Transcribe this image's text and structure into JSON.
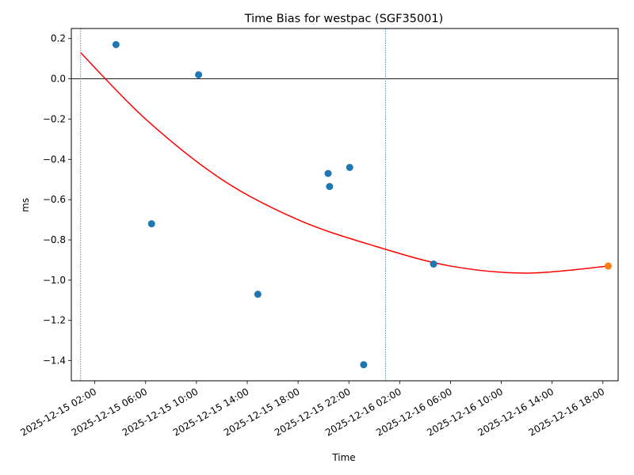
{
  "chart_data": {
    "type": "scatter",
    "title": "Time Bias for westpac (SGF35001)",
    "xlabel": "Time",
    "ylabel": "ms",
    "xlim": [
      "2025-12-15T00:09:00",
      "2025-12-16T19:12:00"
    ],
    "ylim": [
      -1.5,
      0.25
    ],
    "x_ticks": [
      {
        "t": "2025-12-15T02:00:00",
        "label": "2025-12-15 02:00"
      },
      {
        "t": "2025-12-15T06:00:00",
        "label": "2025-12-15 06:00"
      },
      {
        "t": "2025-12-15T10:00:00",
        "label": "2025-12-15 10:00"
      },
      {
        "t": "2025-12-15T14:00:00",
        "label": "2025-12-15 14:00"
      },
      {
        "t": "2025-12-15T18:00:00",
        "label": "2025-12-15 18:00"
      },
      {
        "t": "2025-12-15T22:00:00",
        "label": "2025-12-15 22:00"
      },
      {
        "t": "2025-12-16T02:00:00",
        "label": "2025-12-16 02:00"
      },
      {
        "t": "2025-12-16T06:00:00",
        "label": "2025-12-16 06:00"
      },
      {
        "t": "2025-12-16T10:00:00",
        "label": "2025-12-16 10:00"
      },
      {
        "t": "2025-12-16T14:00:00",
        "label": "2025-12-16 14:00"
      },
      {
        "t": "2025-12-16T18:00:00",
        "label": "2025-12-16 18:00"
      }
    ],
    "y_ticks": [
      {
        "v": 0.2,
        "label": "0.2"
      },
      {
        "v": 0.0,
        "label": "0.0"
      },
      {
        "v": -0.2,
        "label": "−0.2"
      },
      {
        "v": -0.4,
        "label": "−0.4"
      },
      {
        "v": -0.6,
        "label": "−0.6"
      },
      {
        "v": -0.8,
        "label": "−0.8"
      },
      {
        "v": -1.0,
        "label": "−1.0"
      },
      {
        "v": -1.2,
        "label": "−1.2"
      },
      {
        "v": -1.4,
        "label": "−1.4"
      }
    ],
    "series": [
      {
        "color": "#1f77b4",
        "points": [
          {
            "x": "2025-12-15T03:40:00",
            "y": 0.17
          },
          {
            "x": "2025-12-15T06:28:00",
            "y": -0.72
          },
          {
            "x": "2025-12-15T10:10:00",
            "y": 0.02
          },
          {
            "x": "2025-12-15T14:50:00",
            "y": -1.07
          },
          {
            "x": "2025-12-15T20:22:00",
            "y": -0.47
          },
          {
            "x": "2025-12-15T20:29:00",
            "y": -0.535
          },
          {
            "x": "2025-12-15T22:04:00",
            "y": -0.44
          },
          {
            "x": "2025-12-15T23:10:00",
            "y": -1.42
          },
          {
            "x": "2025-12-16T04:40:00",
            "y": -0.92
          }
        ]
      },
      {
        "color": "#ff7f0e",
        "points": [
          {
            "x": "2025-12-16T18:25:00",
            "y": -0.93
          }
        ]
      }
    ],
    "fit_curve": {
      "color": "#ff0000",
      "points": [
        {
          "x": "2025-12-15T00:53:00",
          "y": 0.13
        },
        {
          "x": "2025-12-15T06:00:00",
          "y": -0.2
        },
        {
          "x": "2025-12-15T12:00:00",
          "y": -0.5
        },
        {
          "x": "2025-12-15T18:00:00",
          "y": -0.7
        },
        {
          "x": "2025-12-16T00:00:00",
          "y": -0.83
        },
        {
          "x": "2025-12-16T06:00:00",
          "y": -0.93
        },
        {
          "x": "2025-12-16T12:00:00",
          "y": -0.965
        },
        {
          "x": "2025-12-16T18:25:00",
          "y": -0.93
        }
      ]
    },
    "reference_lines": {
      "horizontal": [
        {
          "y": 0.0,
          "color": "#000000"
        }
      ],
      "vertical": [
        {
          "x": "2025-12-15T00:53:00",
          "color": "#1f77b4",
          "style": "dotted"
        },
        {
          "x": "2025-12-16T00:53:00",
          "color": "#1f77b4",
          "style": "dotted"
        }
      ]
    },
    "grid": false,
    "legend": "none"
  }
}
